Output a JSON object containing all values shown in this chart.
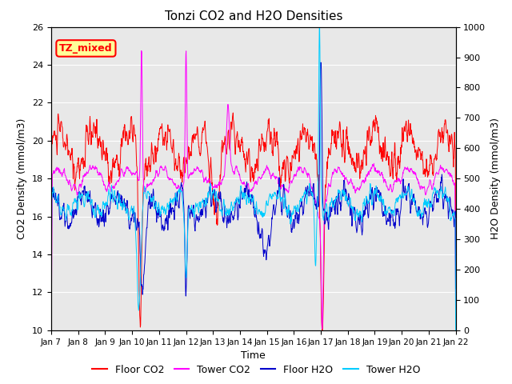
{
  "title": "Tonzi CO2 and H2O Densities",
  "xlabel": "Time",
  "ylabel_left": "CO2 Density (mmol/m3)",
  "ylabel_right": "H2O Density (mmol/m3)",
  "ylim_left": [
    10,
    26
  ],
  "ylim_right": [
    0,
    1000
  ],
  "yticks_left": [
    10,
    12,
    14,
    16,
    18,
    20,
    22,
    24,
    26
  ],
  "yticks_right": [
    0,
    100,
    200,
    300,
    400,
    500,
    600,
    700,
    800,
    900,
    1000
  ],
  "xtick_labels": [
    "Jan 7",
    "Jan 8",
    "Jan 9",
    "Jan 10",
    "Jan 11",
    "Jan 12",
    "Jan 13",
    "Jan 14",
    "Jan 15",
    "Jan 16",
    "Jan 17",
    "Jan 18",
    "Jan 19",
    "Jan 20",
    "Jan 21",
    "Jan 22"
  ],
  "annotation_text": "TZ_mixed",
  "annotation_color": "red",
  "annotation_bg": "#ffff99",
  "floor_co2_color": "#ff0000",
  "tower_co2_color": "#ff00ff",
  "floor_h2o_color": "#0000cc",
  "tower_h2o_color": "#00ccff",
  "legend_labels": [
    "Floor CO2",
    "Tower CO2",
    "Floor H2O",
    "Tower H2O"
  ],
  "background_color": "#e8e8e8",
  "seed": 12345
}
